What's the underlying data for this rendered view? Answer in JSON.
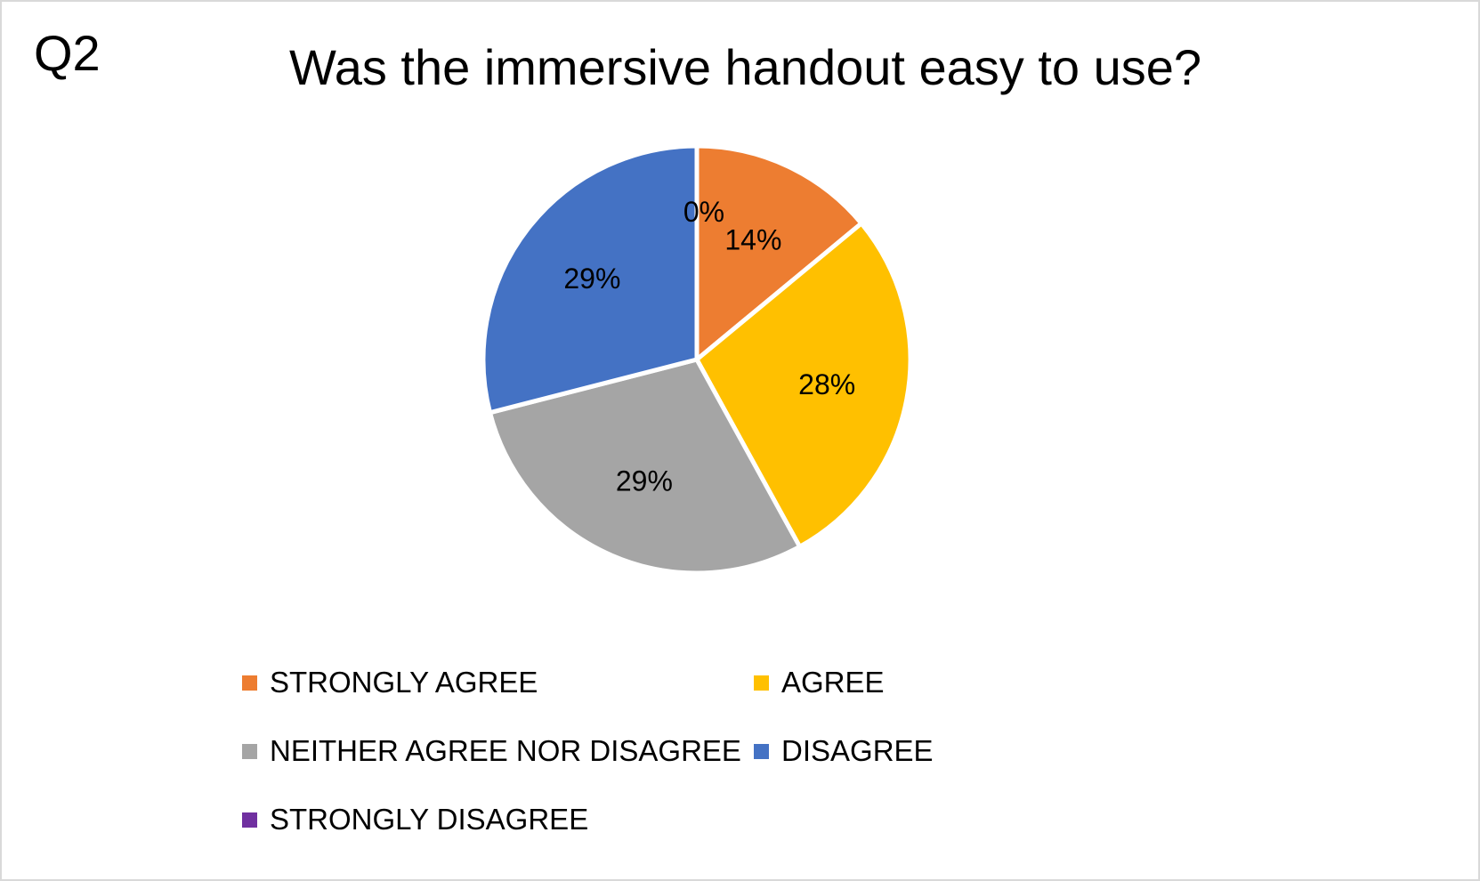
{
  "chart_data": {
    "type": "pie",
    "corner_label": "Q2",
    "title": "Was the immersive handout easy to use?",
    "slices": [
      {
        "name": "STRONGLY AGREE",
        "value": 14,
        "label": "14%",
        "color": "#ED7D31"
      },
      {
        "name": "AGREE",
        "value": 28,
        "label": "28%",
        "color": "#FFC000"
      },
      {
        "name": "NEITHER AGREE NOR DISAGREE",
        "value": 29,
        "label": "29%",
        "color": "#A5A5A5"
      },
      {
        "name": "DISAGREE",
        "value": 29,
        "label": "29%",
        "color": "#4472C4"
      },
      {
        "name": "STRONGLY DISAGREE",
        "value": 0,
        "label": "0%",
        "color": "#7030A0"
      }
    ],
    "start_angle_deg": 0,
    "direction": "clockwise",
    "legend_position": "bottom"
  }
}
